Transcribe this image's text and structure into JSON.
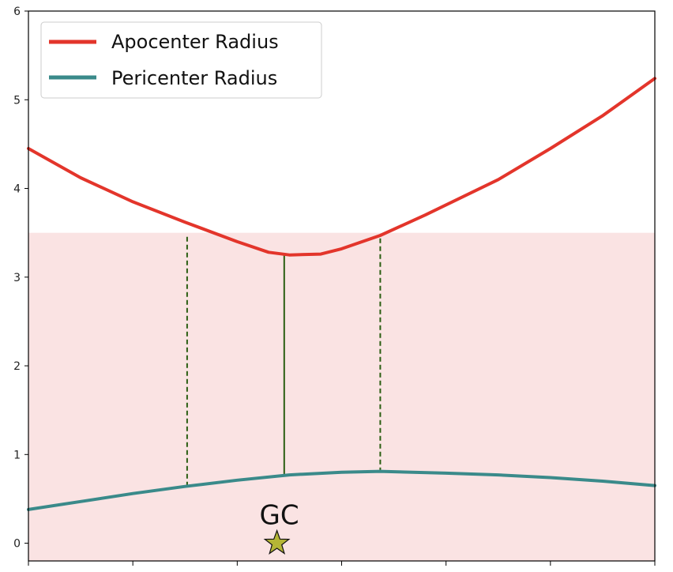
{
  "chart_data": {
    "type": "line",
    "title": "",
    "xlabel": "",
    "ylabel": "",
    "xlim": [
      0,
      6
    ],
    "ylim": [
      -0.2,
      6
    ],
    "y_ticks": [
      "0",
      "1",
      "2",
      "3",
      "4",
      "5",
      "6"
    ],
    "x_tick_values": [
      0,
      1,
      2,
      3,
      4,
      5,
      6
    ],
    "x_tick_labels": [],
    "grid": false,
    "legend_position": "top-left",
    "shaded_region": {
      "y_from": -0.2,
      "y_to": 3.5,
      "color": "#fae3e3"
    },
    "series": [
      {
        "name": "Apocenter Radius",
        "color": "#e3352b",
        "x": [
          0,
          0.5,
          1.0,
          1.5,
          2.0,
          2.3,
          2.5,
          2.8,
          3.0,
          3.37,
          3.8,
          4.5,
          5.0,
          5.5,
          6.0
        ],
        "values": [
          4.45,
          4.12,
          3.85,
          3.62,
          3.4,
          3.28,
          3.25,
          3.26,
          3.32,
          3.47,
          3.7,
          4.1,
          4.45,
          4.82,
          5.24
        ]
      },
      {
        "name": "Pericenter Radius",
        "color": "#3a8a8a",
        "x": [
          0,
          0.5,
          1.0,
          1.5,
          2.0,
          2.5,
          3.0,
          3.37,
          4.0,
          4.5,
          5.0,
          5.5,
          6.0
        ],
        "values": [
          0.38,
          0.47,
          0.56,
          0.64,
          0.71,
          0.77,
          0.8,
          0.81,
          0.79,
          0.77,
          0.74,
          0.7,
          0.65
        ]
      }
    ],
    "vertical_lines": [
      {
        "x": 1.52,
        "y0": 0.64,
        "y1": 3.47,
        "style": "dashed",
        "color": "#2a5e12"
      },
      {
        "x": 2.45,
        "y0": 0.76,
        "y1": 3.25,
        "style": "solid",
        "color": "#2a5e12"
      },
      {
        "x": 3.37,
        "y0": 0.8,
        "y1": 3.47,
        "style": "dashed",
        "color": "#2a5e12"
      }
    ],
    "annotation": {
      "text": "GC",
      "x": 2.38,
      "y": 0.0,
      "marker": "star",
      "color": "#b5b536"
    }
  }
}
